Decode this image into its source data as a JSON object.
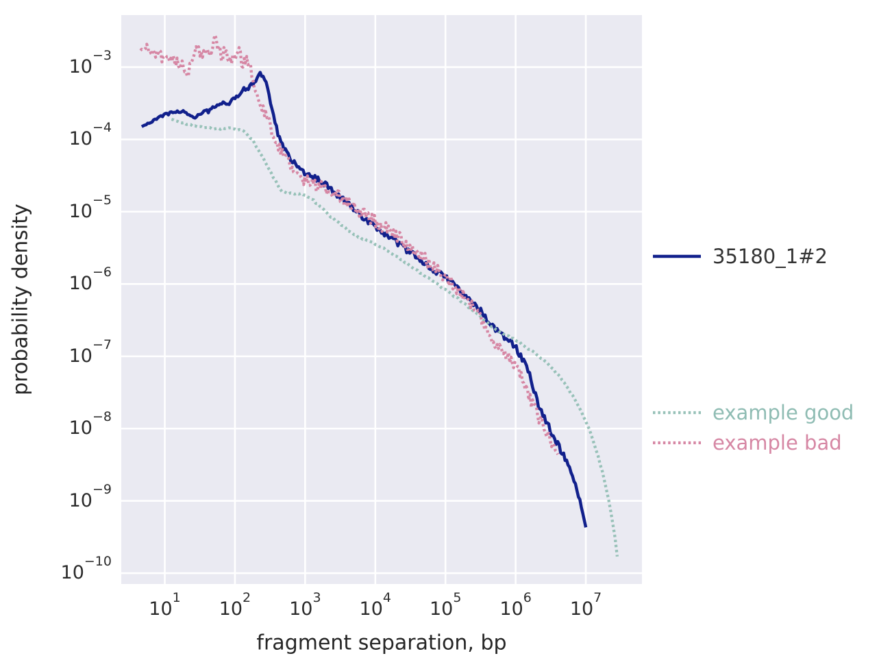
{
  "figure": {
    "background": "#ffffff",
    "axes_background": "#eaeaf2",
    "grid_color": "#ffffff",
    "text_color": "#262626"
  },
  "chart_data": {
    "type": "line",
    "x_scale": "log",
    "y_scale": "log",
    "title": "",
    "xlabel": "fragment separation, bp",
    "ylabel": "probability density",
    "grid": true,
    "legend_position": "right-outside",
    "xlim_log10": [
      0.38,
      7.8
    ],
    "ylim_log10": [
      -10.15,
      -2.28
    ],
    "x_tick_exponents": [
      1,
      2,
      3,
      4,
      5,
      6,
      7
    ],
    "y_tick_exponents": [
      -3,
      -4,
      -5,
      -6,
      -7,
      -8,
      -9,
      -10
    ],
    "series": [
      {
        "name": "35180_1#2",
        "color": "#11208c",
        "line_style": "solid",
        "width": 4.5,
        "jitter": 0.042,
        "jitter_ramp": [
          0.65,
          2.3
        ],
        "samples": 300,
        "seed": 7,
        "points": [
          [
            4.7,
            0.00015
          ],
          [
            6,
            0.00017
          ],
          [
            8,
            0.000195
          ],
          [
            10,
            0.00022
          ],
          [
            13,
            0.000235
          ],
          [
            16,
            0.000245
          ],
          [
            19,
            0.00024
          ],
          [
            22,
            0.000215
          ],
          [
            26,
            0.0002
          ],
          [
            30,
            0.00022
          ],
          [
            36,
            0.00025
          ],
          [
            42,
            0.00024
          ],
          [
            50,
            0.00028
          ],
          [
            60,
            0.00031
          ],
          [
            70,
            0.00033
          ],
          [
            80,
            0.00032
          ],
          [
            95,
            0.00036
          ],
          [
            110,
            0.00041
          ],
          [
            125,
            0.00045
          ],
          [
            140,
            0.0005
          ],
          [
            160,
            0.00053
          ],
          [
            180,
            0.00061
          ],
          [
            200,
            0.00068
          ],
          [
            220,
            0.00076
          ],
          [
            240,
            0.00079
          ],
          [
            260,
            0.00072
          ],
          [
            285,
            0.00056
          ],
          [
            310,
            0.0004
          ],
          [
            340,
            0.00026
          ],
          [
            370,
            0.00018
          ],
          [
            400,
            0.00013
          ],
          [
            440,
            0.0001
          ],
          [
            490,
            8e-05
          ],
          [
            560,
            6.4e-05
          ],
          [
            650,
            5.1e-05
          ],
          [
            760,
            4.2e-05
          ],
          [
            900,
            3.7e-05
          ],
          [
            1000,
            3.5e-05
          ],
          [
            1300,
            3e-05
          ],
          [
            1600,
            2.8e-05
          ],
          [
            2000,
            2.3e-05
          ],
          [
            2600,
            1.9e-05
          ],
          [
            3400,
            1.5e-05
          ],
          [
            4500,
            1.15e-05
          ],
          [
            6000,
            9.1e-06
          ],
          [
            8000,
            7.3e-06
          ],
          [
            10000,
            6.2e-06
          ],
          [
            14000,
            4.8e-06
          ],
          [
            20000,
            3.8e-06
          ],
          [
            30000,
            2.8e-06
          ],
          [
            45000,
            2.1e-06
          ],
          [
            65000,
            1.6e-06
          ],
          [
            100000,
            1.25e-06
          ],
          [
            150000,
            8.6e-07
          ],
          [
            220000,
            6e-07
          ],
          [
            320000,
            4.2e-07
          ],
          [
            520000,
            2.3e-07
          ],
          [
            700000,
            1.8e-07
          ],
          [
            1000000,
            1.35e-07
          ],
          [
            1300000,
            8.5e-08
          ],
          [
            1600000,
            5.5e-08
          ],
          [
            2100000,
            2.1e-08
          ],
          [
            2600000,
            1.4e-08
          ],
          [
            3200000,
            9e-09
          ],
          [
            4000000,
            6e-09
          ],
          [
            5600000,
            3.2e-09
          ],
          [
            7000000,
            1.8e-09
          ],
          [
            8500000,
            9e-10
          ],
          [
            10000000,
            4.3e-10
          ]
        ]
      },
      {
        "name": "example good",
        "color": "#97c1b8",
        "line_style": "dotted",
        "width": 4.3,
        "jitter": 0.013,
        "samples": 210,
        "seed": 3,
        "points": [
          [
            12.5,
            0.00019
          ],
          [
            16,
            0.000175
          ],
          [
            20,
            0.000165
          ],
          [
            26,
            0.000155
          ],
          [
            34,
            0.000148
          ],
          [
            45,
            0.000143
          ],
          [
            60,
            0.00014
          ],
          [
            80,
            0.000142
          ],
          [
            100,
            0.00014
          ],
          [
            120,
            0.000135
          ],
          [
            145,
            0.000122
          ],
          [
            175,
            0.0001
          ],
          [
            210,
            7.5e-05
          ],
          [
            260,
            5.2e-05
          ],
          [
            320,
            3.6e-05
          ],
          [
            400,
            2.4e-05
          ],
          [
            470,
            1.9e-05
          ],
          [
            560,
            1.75e-05
          ],
          [
            700,
            1.8e-05
          ],
          [
            850,
            1.75e-05
          ],
          [
            1000,
            1.7e-05
          ],
          [
            1300,
            1.45e-05
          ],
          [
            1700,
            1.15e-05
          ],
          [
            2200,
            9e-06
          ],
          [
            3000,
            7e-06
          ],
          [
            4000,
            5.6e-06
          ],
          [
            5500,
            4.6e-06
          ],
          [
            7500,
            4e-06
          ],
          [
            10000,
            3.6e-06
          ],
          [
            14000,
            3e-06
          ],
          [
            20000,
            2.4e-06
          ],
          [
            30000,
            1.85e-06
          ],
          [
            45000,
            1.4e-06
          ],
          [
            65000,
            1.1e-06
          ],
          [
            100000,
            8.2e-07
          ],
          [
            150000,
            6.3e-07
          ],
          [
            220000,
            4.7e-07
          ],
          [
            320000,
            3.5e-07
          ],
          [
            470000,
            2.5e-07
          ],
          [
            700000,
            2e-07
          ],
          [
            1000000,
            1.7e-07
          ],
          [
            1400000,
            1.35e-07
          ],
          [
            2000000,
            1.05e-07
          ],
          [
            2800000,
            8e-08
          ],
          [
            4000000,
            5.6e-08
          ],
          [
            5500000,
            3.7e-08
          ],
          [
            7000000,
            2.5e-08
          ],
          [
            8500000,
            1.75e-08
          ],
          [
            10000000,
            1.25e-08
          ],
          [
            12000000,
            8.2e-09
          ],
          [
            15000000,
            4.2e-09
          ],
          [
            18000000,
            2.1e-09
          ],
          [
            22000000,
            8.5e-10
          ],
          [
            26000000,
            3.2e-10
          ],
          [
            28000000,
            1.7e-10
          ]
        ]
      },
      {
        "name": "example bad",
        "color": "#d687a4",
        "line_style": "dotted",
        "width": 4.3,
        "jitter": 0.085,
        "samples": 330,
        "seed": 11,
        "points": [
          [
            4.5,
            0.0017
          ],
          [
            5.5,
            0.00185
          ],
          [
            7,
            0.0016
          ],
          [
            9,
            0.00135
          ],
          [
            11,
            0.00115
          ],
          [
            13,
            0.00135
          ],
          [
            15,
            0.00115
          ],
          [
            18,
            0.001
          ],
          [
            21,
            0.00085
          ],
          [
            24,
            0.0011
          ],
          [
            27,
            0.0016
          ],
          [
            30,
            0.0019
          ],
          [
            33,
            0.0015
          ],
          [
            37,
            0.00175
          ],
          [
            42,
            0.0014
          ],
          [
            47,
            0.002
          ],
          [
            52,
            0.0024
          ],
          [
            58,
            0.0017
          ],
          [
            64,
            0.00135
          ],
          [
            70,
            0.0017
          ],
          [
            78,
            0.00145
          ],
          [
            86,
            0.0012
          ],
          [
            95,
            0.0015
          ],
          [
            105,
            0.0013
          ],
          [
            115,
            0.00155
          ],
          [
            128,
            0.00115
          ],
          [
            142,
            0.00135
          ],
          [
            158,
            0.00105
          ],
          [
            170,
            0.001
          ],
          [
            182,
            0.00065
          ],
          [
            195,
            0.00042
          ],
          [
            215,
            0.00032
          ],
          [
            245,
            0.00028
          ],
          [
            280,
            0.0002
          ],
          [
            330,
            0.00014
          ],
          [
            390,
            9.5e-05
          ],
          [
            460,
            6.8e-05
          ],
          [
            550,
            5.2e-05
          ],
          [
            660,
            4.1e-05
          ],
          [
            800,
            3.2e-05
          ],
          [
            1000,
            2.7e-05
          ],
          [
            1300,
            2.4e-05
          ],
          [
            1700,
            2.2e-05
          ],
          [
            2200,
            1.95e-05
          ],
          [
            3000,
            1.6e-05
          ],
          [
            4000,
            1.3e-05
          ],
          [
            5500,
            1.05e-05
          ],
          [
            7500,
            8.6e-06
          ],
          [
            10000,
            7.3e-06
          ],
          [
            14000,
            5.9e-06
          ],
          [
            20000,
            4.6e-06
          ],
          [
            30000,
            3.4e-06
          ],
          [
            45000,
            2.5e-06
          ],
          [
            65000,
            1.8e-06
          ],
          [
            100000,
            1.25e-06
          ],
          [
            150000,
            8.2e-07
          ],
          [
            220000,
            5.6e-07
          ],
          [
            320000,
            3.4e-07
          ],
          [
            470000,
            1.8e-07
          ],
          [
            600000,
            1.3e-07
          ],
          [
            750000,
            1e-07
          ],
          [
            1000000,
            7.2e-08
          ],
          [
            1300000,
            4.2e-08
          ],
          [
            1700000,
            2.3e-08
          ],
          [
            2100000,
            1.5e-08
          ],
          [
            2600000,
            1e-08
          ],
          [
            3200000,
            6.5e-09
          ],
          [
            4000000,
            4.4e-09
          ]
        ]
      }
    ]
  },
  "legend": {
    "primary": {
      "label": "35180_1#2",
      "text_color": "#343434"
    },
    "examples": [
      {
        "label": "example good",
        "text_color": "#8fbcb3"
      },
      {
        "label": "example bad",
        "text_color": "#d687a4"
      }
    ]
  }
}
